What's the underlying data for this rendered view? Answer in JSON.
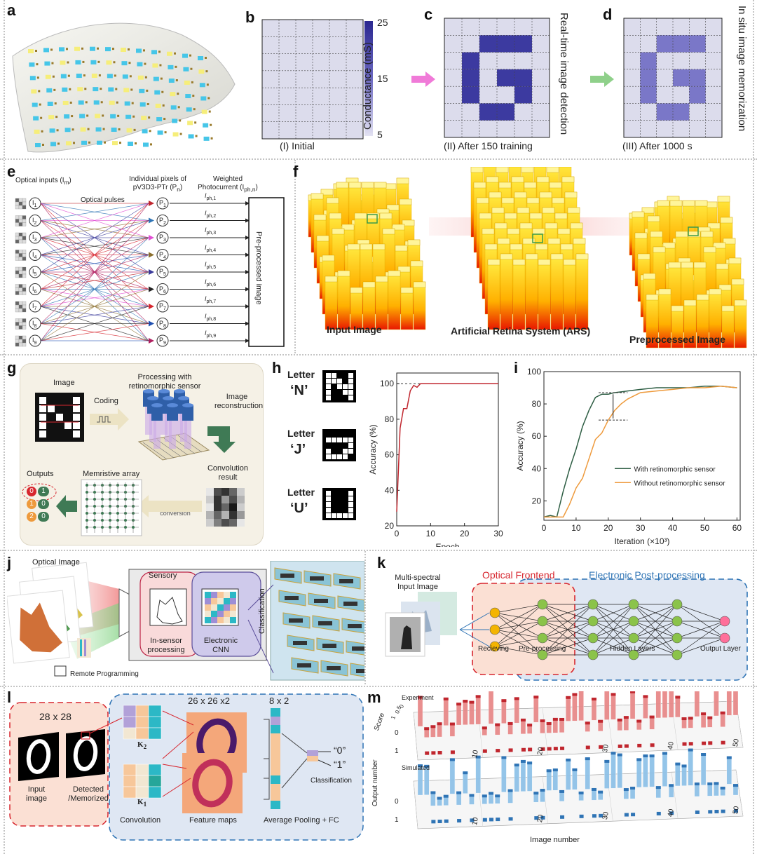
{
  "panel_labels": [
    "a",
    "b",
    "c",
    "d",
    "e",
    "f",
    "g",
    "h",
    "i",
    "j",
    "k",
    "l",
    "m"
  ],
  "b": {
    "caption": "(I) Initial",
    "colorbar_title": "Conductance (mS)",
    "colorbar_ticks": [
      "25",
      "15",
      "5"
    ]
  },
  "c": {
    "caption": "(II) After 150 training",
    "side": "Real-time image detection"
  },
  "d": {
    "caption": "(III) After 1000 s",
    "side": "In situ image memorization"
  },
  "e": {
    "optical_inputs": "Optical inputs (I",
    "optical_inputs_sub": "m",
    "optical_pulses": "Optical pulses",
    "pixels_title": "Individual pixels of pV3D3-PTr (P",
    "pixels_sub": "n",
    "photocurrent_title": "Weighted Photocurrent (I",
    "photocurrent_sub": "ph,n",
    "box": "Pre-processed image",
    "inputs": [
      "1",
      "2",
      "3",
      "4",
      "5",
      "6",
      "7",
      "8",
      "9"
    ],
    "outputs": [
      "1",
      "2",
      "3",
      "4",
      "5",
      "6",
      "7",
      "8",
      "9"
    ],
    "currents": [
      "ph,1",
      "ph,2",
      "ph,3",
      "ph,4",
      "ph,5",
      "ph,6",
      "ph,7",
      "ph,8",
      "ph,9"
    ]
  },
  "f": {
    "left": "Input Image",
    "mid": "Artificial Retina System (ARS)",
    "right": "Preprocessed Image"
  },
  "g": {
    "image": "Image",
    "coding": "Coding",
    "processing": "Processing with retinomorphic sensor",
    "reconstruction": "Image reconstruction",
    "convolution": "Convolution result",
    "memristive": "Memristive array",
    "c2v": "Current-to-voltage conversion",
    "outputs": "Outputs",
    "out_rows": [
      [
        "0",
        "1"
      ],
      [
        "1",
        "0"
      ],
      [
        "2",
        "0"
      ]
    ]
  },
  "h": {
    "letters": [
      {
        "word": "Letter",
        "char": "‘N’"
      },
      {
        "word": "Letter",
        "char": "‘J’"
      },
      {
        "word": "Letter",
        "char": "‘U’"
      }
    ],
    "xlabel": "Epoch",
    "ylabel": "Accuracy (%)",
    "xticks": [
      "0",
      "10",
      "20",
      "30"
    ],
    "yticks": [
      "20",
      "40",
      "60",
      "80",
      "100"
    ]
  },
  "i": {
    "xlabel": "Iteration (×10³)",
    "ylabel": "Accuracy (%)",
    "xticks": [
      "0",
      "10",
      "20",
      "30",
      "40",
      "50",
      "60"
    ],
    "yticks": [
      "20",
      "40",
      "60",
      "80",
      "100"
    ],
    "legend": [
      "With retinomorphic sensor",
      "Without retinomorphic sensor"
    ]
  },
  "j": {
    "optical": "Optical Image",
    "sensory": "Sensory",
    "insensor": "In-sensor processing",
    "electronic": "Electronic CNN",
    "classification": "Classification",
    "remote": "Remote Programming"
  },
  "k": {
    "input": "Multi-spectral Input Image",
    "optical": "Optical Frontend",
    "electronic": "Electronic Post-processing",
    "recieving": "Recieving",
    "pre": "Pre-processing",
    "hidden": "Hidden Layers",
    "output": "Output Layer"
  },
  "l": {
    "size1": "28 x 28",
    "size2": "26 x 26 x2",
    "size3": "8 x 2",
    "input": "Input image",
    "detected": "Detected /Memorized",
    "k2": "K",
    "k2sub": "2",
    "k1": "K",
    "k1sub": "1",
    "out0": "“0”",
    "out1": "“1”",
    "classification": "Classification",
    "convolution": "Convolution",
    "feature": "Feature maps",
    "pooling": "Average Pooling + FC"
  },
  "m": {
    "experiment": "Experiment",
    "simulated": "Simulated",
    "score": "Score",
    "score_ticks": [
      "1",
      "0.5",
      "0"
    ],
    "output_number": "Output number",
    "out_ticks": [
      "0",
      "1"
    ],
    "xlabel": "Image number",
    "xticks": [
      "10",
      "20",
      "30",
      "40",
      "50"
    ]
  },
  "colors": {
    "grid_bg": "#dcdcec",
    "pattern_strong": "#3c3aa0",
    "pattern_soft": "#7a77c8",
    "pink": "#f07ad8",
    "green": "#8fd08a",
    "line_green": "#2e5e44",
    "line_orange": "#ee9a3c",
    "h_line": "#c0262e",
    "blue_dash": "#2f74b5",
    "red_dash": "#d7262e"
  }
}
